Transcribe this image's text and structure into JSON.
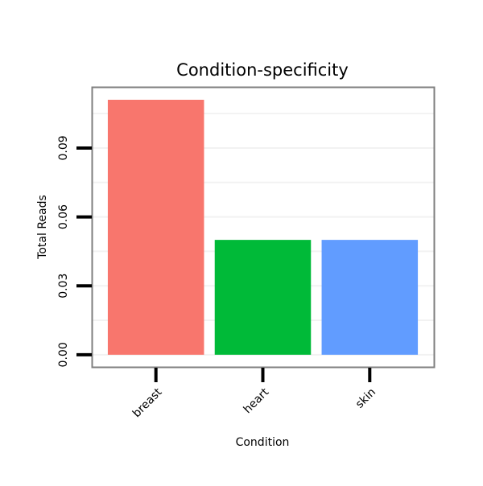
{
  "chart_data": {
    "type": "bar",
    "title": "Condition-specificity",
    "xlabel": "Condition",
    "ylabel": "Total Reads",
    "categories": [
      "breast",
      "heart",
      "skin"
    ],
    "values": [
      0.111,
      0.05,
      0.05
    ],
    "colors": [
      "#F8766D",
      "#00BA38",
      "#619CFF"
    ],
    "yticks": [
      0,
      0.03,
      0.06,
      0.09
    ],
    "ytick_labels": [
      "0.00",
      "0.03",
      "0.06",
      "0.09"
    ],
    "ylim": [
      -0.0053,
      0.1166
    ],
    "grid": true,
    "legend": "none"
  }
}
